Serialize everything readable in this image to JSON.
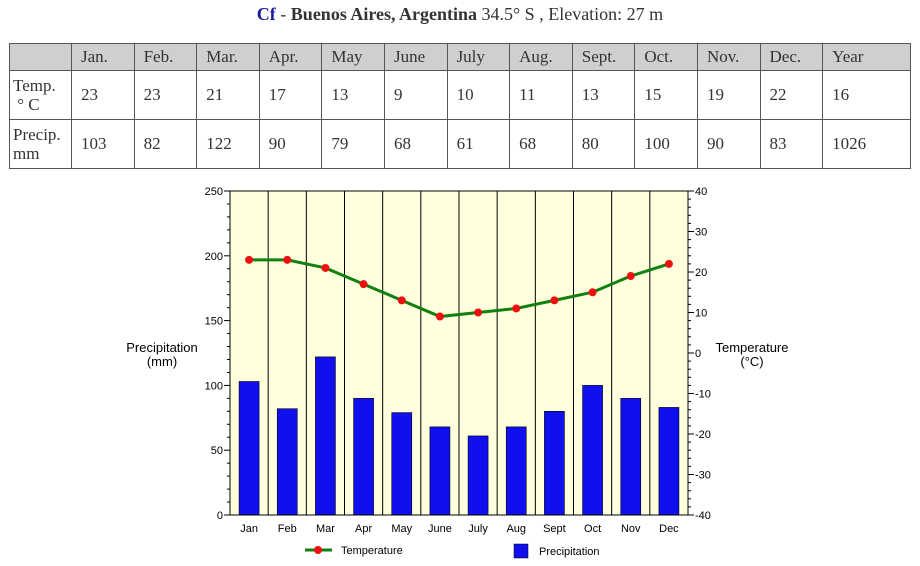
{
  "header": {
    "code": "Cf",
    "separator": "-",
    "city": "Buenos Aires, Argentina",
    "latitude": "34.5° S",
    "elevation": ", Elevation: 27 m"
  },
  "table": {
    "columns": [
      "",
      "Jan.",
      "Feb.",
      "Mar.",
      "Apr.",
      "May",
      "June",
      "July",
      "Aug.",
      "Sept.",
      "Oct.",
      "Nov.",
      "Dec.",
      "Year"
    ],
    "rows": [
      {
        "label_line1": "Temp.",
        "label_line2": "° C",
        "values": [
          "23",
          "23",
          "21",
          "17",
          "13",
          "9",
          "10",
          "11",
          "13",
          "15",
          "19",
          "22",
          "16"
        ]
      },
      {
        "label_line1": "Precip.",
        "label_line2": "mm",
        "values": [
          "103",
          "82",
          "122",
          "90",
          "79",
          "68",
          "61",
          "68",
          "80",
          "100",
          "90",
          "83",
          "1026"
        ]
      }
    ]
  },
  "chart_data": {
    "type": "bar",
    "categories": [
      "Jan",
      "Feb",
      "Mar",
      "Apr",
      "May",
      "June",
      "July",
      "Aug",
      "Sept",
      "Oct",
      "Nov",
      "Dec"
    ],
    "series": [
      {
        "name": "Precipitation",
        "type": "bar",
        "axis": "left",
        "values": [
          103,
          82,
          122,
          90,
          79,
          68,
          61,
          68,
          80,
          100,
          90,
          83
        ],
        "color": "#1010ee"
      },
      {
        "name": "Temperature",
        "type": "line",
        "axis": "right",
        "values": [
          23,
          23,
          21,
          17,
          13,
          9,
          10,
          11,
          13,
          15,
          19,
          22
        ],
        "color": "#108010",
        "marker_color": "#ee1010"
      }
    ],
    "ylabel_left": [
      "Precipitation",
      "(mm)"
    ],
    "ylabel_right": [
      "Temperature",
      "(°C)"
    ],
    "ylim_left": [
      0,
      250
    ],
    "ylim_right": [
      -40,
      40
    ],
    "yticks_left": [
      0,
      50,
      100,
      150,
      200,
      250
    ],
    "yticks_right": [
      -40,
      -30,
      -20,
      -10,
      0,
      10,
      20,
      30,
      40
    ],
    "plot_background": "#ffffdd",
    "legend": [
      "Temperature",
      "Precipitation"
    ],
    "legend_position": "bottom"
  }
}
